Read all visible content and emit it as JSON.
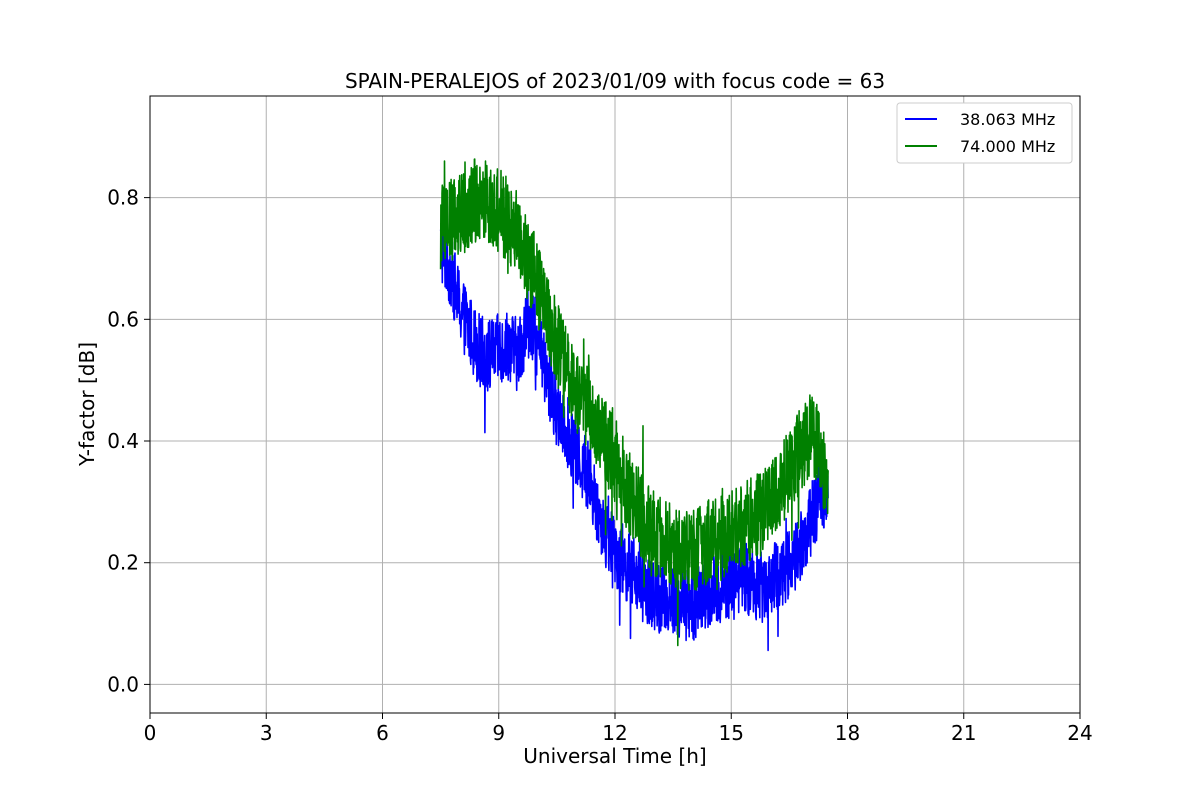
{
  "chart_data": {
    "type": "line",
    "title": "SPAIN-PERALEJOS of 2023/01/09 with focus code = 63",
    "xlabel": "Universal Time [h]",
    "ylabel": "Y-factor [dB]",
    "xlim": [
      0,
      24
    ],
    "ylim": [
      -0.047,
      0.967
    ],
    "xticks": [
      0,
      3,
      6,
      9,
      12,
      15,
      18,
      21,
      24
    ],
    "xtick_labels": [
      "0",
      "3",
      "6",
      "9",
      "12",
      "15",
      "18",
      "21",
      "24"
    ],
    "yticks": [
      0.0,
      0.2,
      0.4,
      0.6,
      0.8
    ],
    "ytick_labels": [
      "0.0",
      "0.2",
      "0.4",
      "0.6",
      "0.8"
    ],
    "grid": true,
    "legend_position": "top-right",
    "series": [
      {
        "name": "38.063 MHz",
        "color": "#0000ff",
        "x": [
          7.5,
          7.75,
          8.0,
          8.25,
          8.5,
          8.75,
          9.0,
          9.25,
          9.5,
          9.75,
          10.0,
          10.25,
          10.5,
          10.75,
          11.0,
          11.25,
          11.5,
          11.75,
          12.0,
          12.25,
          12.5,
          12.75,
          13.0,
          13.25,
          13.5,
          13.75,
          14.0,
          14.25,
          14.5,
          14.75,
          15.0,
          15.25,
          15.5,
          15.75,
          16.0,
          16.25,
          16.5,
          16.75,
          17.0,
          17.25,
          17.5
        ],
        "y": [
          0.72,
          0.68,
          0.62,
          0.58,
          0.55,
          0.54,
          0.55,
          0.56,
          0.54,
          0.6,
          0.56,
          0.5,
          0.45,
          0.42,
          0.38,
          0.35,
          0.3,
          0.25,
          0.22,
          0.2,
          0.18,
          0.16,
          0.15,
          0.14,
          0.14,
          0.13,
          0.13,
          0.14,
          0.15,
          0.16,
          0.17,
          0.18,
          0.17,
          0.16,
          0.17,
          0.18,
          0.2,
          0.22,
          0.26,
          0.3,
          0.33
        ],
        "noise": 0.06
      },
      {
        "name": "74.000 MHz",
        "color": "#008000",
        "x": [
          7.5,
          7.75,
          8.0,
          8.25,
          8.5,
          8.75,
          9.0,
          9.25,
          9.5,
          9.75,
          10.0,
          10.25,
          10.5,
          10.75,
          11.0,
          11.25,
          11.5,
          11.75,
          12.0,
          12.25,
          12.5,
          12.75,
          13.0,
          13.25,
          13.5,
          13.75,
          14.0,
          14.25,
          14.5,
          14.75,
          15.0,
          15.25,
          15.5,
          15.75,
          16.0,
          16.25,
          16.5,
          16.75,
          17.0,
          17.25,
          17.5
        ],
        "y": [
          0.75,
          0.76,
          0.77,
          0.79,
          0.8,
          0.79,
          0.78,
          0.76,
          0.74,
          0.7,
          0.66,
          0.6,
          0.56,
          0.52,
          0.48,
          0.46,
          0.43,
          0.4,
          0.37,
          0.33,
          0.3,
          0.27,
          0.25,
          0.24,
          0.23,
          0.22,
          0.22,
          0.23,
          0.24,
          0.24,
          0.25,
          0.26,
          0.27,
          0.28,
          0.3,
          0.32,
          0.35,
          0.38,
          0.41,
          0.4,
          0.3
        ],
        "noise": 0.07
      }
    ]
  }
}
